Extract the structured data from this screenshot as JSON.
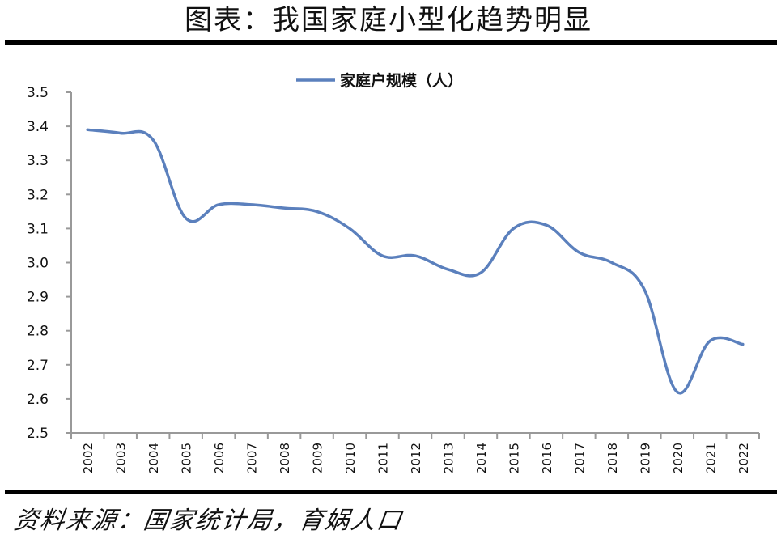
{
  "header": {
    "title": "图表：我国家庭小型化趋势明显"
  },
  "footer": {
    "source": "资料来源：国家统计局，育娲人口"
  },
  "colors": {
    "series": "#5b80bd",
    "axis": "#999999",
    "rule": "#000000"
  },
  "chart_data": {
    "type": "line",
    "title": "图表：我国家庭小型化趋势明显",
    "xlabel": "",
    "ylabel": "",
    "ylim": [
      2.5,
      3.5
    ],
    "yticks": [
      "3.5",
      "3.4",
      "3.3",
      "3.2",
      "3.1",
      "3.0",
      "2.9",
      "2.8",
      "2.7",
      "2.6",
      "2.5"
    ],
    "grid": false,
    "legend_position": "top-center",
    "smooth": true,
    "categories": [
      "2002",
      "2003",
      "2004",
      "2005",
      "2006",
      "2007",
      "2008",
      "2009",
      "2010",
      "2011",
      "2012",
      "2013",
      "2014",
      "2015",
      "2016",
      "2017",
      "2018",
      "2019",
      "2020",
      "2021",
      "2022"
    ],
    "series": [
      {
        "name": "家庭户规模（人）",
        "values": [
          3.39,
          3.38,
          3.36,
          3.13,
          3.17,
          3.17,
          3.16,
          3.15,
          3.1,
          3.02,
          3.02,
          2.98,
          2.97,
          3.1,
          3.11,
          3.03,
          3.0,
          2.92,
          2.62,
          2.77,
          2.76
        ]
      }
    ]
  },
  "source_text": "资料来源：国家统计局，育娲人口"
}
